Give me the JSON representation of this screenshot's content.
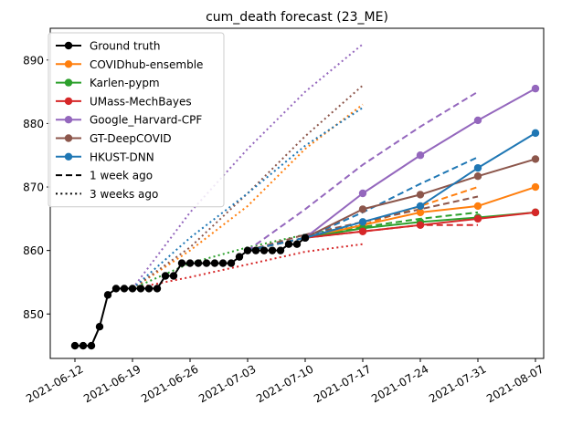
{
  "chart_data": {
    "type": "line",
    "title": "cum_death forecast (23_ME)",
    "xlabel": "",
    "ylabel": "",
    "x_range": [
      "2021-06-09",
      "2021-08-08"
    ],
    "y_range": [
      843,
      895
    ],
    "x_ticks": [
      "2021-06-12",
      "2021-06-19",
      "2021-06-26",
      "2021-07-03",
      "2021-07-10",
      "2021-07-17",
      "2021-07-24",
      "2021-07-31",
      "2021-08-07"
    ],
    "y_ticks": [
      850,
      860,
      870,
      880,
      890
    ],
    "grid": false,
    "legend_position": "top-left",
    "legend": [
      {
        "label": "Ground truth",
        "color": "#000000",
        "style": "solid-marker"
      },
      {
        "label": "COVIDhub-ensemble",
        "color": "#ff7f0e",
        "style": "solid-marker"
      },
      {
        "label": "Karlen-pypm",
        "color": "#2ca02c",
        "style": "solid-marker"
      },
      {
        "label": "UMass-MechBayes",
        "color": "#d62728",
        "style": "solid-marker"
      },
      {
        "label": "Google_Harvard-CPF",
        "color": "#9467bd",
        "style": "solid-marker"
      },
      {
        "label": "GT-DeepCOVID",
        "color": "#8c564b",
        "style": "solid-marker"
      },
      {
        "label": "HKUST-DNN",
        "color": "#1f77b4",
        "style": "solid-marker"
      },
      {
        "label": "1 week ago",
        "color": "#000000",
        "style": "dashed"
      },
      {
        "label": "3 weeks ago",
        "color": "#000000",
        "style": "dotted"
      }
    ],
    "ground_truth": {
      "name": "Ground truth",
      "color": "#000000",
      "points": [
        [
          "2021-06-12",
          845
        ],
        [
          "2021-06-13",
          845
        ],
        [
          "2021-06-14",
          845
        ],
        [
          "2021-06-15",
          848
        ],
        [
          "2021-06-16",
          853
        ],
        [
          "2021-06-17",
          854
        ],
        [
          "2021-06-18",
          854
        ],
        [
          "2021-06-19",
          854
        ],
        [
          "2021-06-20",
          854
        ],
        [
          "2021-06-21",
          854
        ],
        [
          "2021-06-22",
          854
        ],
        [
          "2021-06-23",
          856
        ],
        [
          "2021-06-24",
          856
        ],
        [
          "2021-06-25",
          858
        ],
        [
          "2021-06-26",
          858
        ],
        [
          "2021-06-27",
          858
        ],
        [
          "2021-06-28",
          858
        ],
        [
          "2021-06-29",
          858
        ],
        [
          "2021-06-30",
          858
        ],
        [
          "2021-07-01",
          858
        ],
        [
          "2021-07-02",
          859
        ],
        [
          "2021-07-03",
          860
        ],
        [
          "2021-07-04",
          860
        ],
        [
          "2021-07-05",
          860
        ],
        [
          "2021-07-06",
          860
        ],
        [
          "2021-07-07",
          860
        ],
        [
          "2021-07-08",
          861
        ],
        [
          "2021-07-09",
          861
        ],
        [
          "2021-07-10",
          862
        ]
      ]
    },
    "series": [
      {
        "name": "COVIDhub-ensemble",
        "color": "#ff7f0e",
        "horizon": "current",
        "points": [
          [
            "2021-07-10",
            862
          ],
          [
            "2021-07-17",
            864
          ],
          [
            "2021-07-24",
            866
          ],
          [
            "2021-07-31",
            867
          ],
          [
            "2021-08-07",
            870
          ]
        ]
      },
      {
        "name": "COVIDhub-ensemble",
        "color": "#ff7f0e",
        "horizon": "1 week ago",
        "points": [
          [
            "2021-07-03",
            860
          ],
          [
            "2021-07-10",
            862
          ],
          [
            "2021-07-17",
            864
          ],
          [
            "2021-07-24",
            867
          ],
          [
            "2021-07-31",
            870
          ]
        ]
      },
      {
        "name": "COVIDhub-ensemble",
        "color": "#ff7f0e",
        "horizon": "3 weeks ago",
        "points": [
          [
            "2021-06-19",
            854
          ],
          [
            "2021-06-26",
            860
          ],
          [
            "2021-07-03",
            867
          ],
          [
            "2021-07-10",
            876
          ],
          [
            "2021-07-17",
            883
          ]
        ]
      },
      {
        "name": "Karlen-pypm",
        "color": "#2ca02c",
        "horizon": "current",
        "points": [
          [
            "2021-07-10",
            862
          ],
          [
            "2021-07-17",
            863.5
          ],
          [
            "2021-07-24",
            864.5
          ],
          [
            "2021-07-31",
            865.2
          ],
          [
            "2021-08-07",
            866
          ]
        ]
      },
      {
        "name": "Karlen-pypm",
        "color": "#2ca02c",
        "horizon": "1 week ago",
        "points": [
          [
            "2021-07-03",
            860
          ],
          [
            "2021-07-10",
            862
          ],
          [
            "2021-07-17",
            863.7
          ],
          [
            "2021-07-24",
            865
          ],
          [
            "2021-07-31",
            866
          ]
        ]
      },
      {
        "name": "Karlen-pypm",
        "color": "#2ca02c",
        "horizon": "3 weeks ago",
        "points": [
          [
            "2021-06-19",
            854
          ],
          [
            "2021-06-26",
            858
          ],
          [
            "2021-07-03",
            860.5
          ],
          [
            "2021-07-10",
            862.5
          ],
          [
            "2021-07-17",
            864
          ]
        ]
      },
      {
        "name": "UMass-MechBayes",
        "color": "#d62728",
        "horizon": "current",
        "points": [
          [
            "2021-07-10",
            862
          ],
          [
            "2021-07-17",
            863
          ],
          [
            "2021-07-24",
            864
          ],
          [
            "2021-07-31",
            865
          ],
          [
            "2021-08-07",
            866
          ]
        ]
      },
      {
        "name": "UMass-MechBayes",
        "color": "#d62728",
        "horizon": "1 week ago",
        "points": [
          [
            "2021-07-03",
            860
          ],
          [
            "2021-07-10",
            862
          ],
          [
            "2021-07-17",
            863
          ],
          [
            "2021-07-24",
            864
          ],
          [
            "2021-07-31",
            864
          ]
        ]
      },
      {
        "name": "UMass-MechBayes",
        "color": "#d62728",
        "horizon": "3 weeks ago",
        "points": [
          [
            "2021-06-19",
            854
          ],
          [
            "2021-06-26",
            855.8
          ],
          [
            "2021-07-03",
            857.8
          ],
          [
            "2021-07-10",
            859.8
          ],
          [
            "2021-07-17",
            861
          ]
        ]
      },
      {
        "name": "Google_Harvard-CPF",
        "color": "#9467bd",
        "horizon": "current",
        "points": [
          [
            "2021-07-10",
            862
          ],
          [
            "2021-07-17",
            869
          ],
          [
            "2021-07-24",
            875
          ],
          [
            "2021-07-31",
            880.5
          ],
          [
            "2021-08-07",
            885.5
          ]
        ]
      },
      {
        "name": "Google_Harvard-CPF",
        "color": "#9467bd",
        "horizon": "1 week ago",
        "points": [
          [
            "2021-07-03",
            860
          ],
          [
            "2021-07-10",
            866.5
          ],
          [
            "2021-07-17",
            873.5
          ],
          [
            "2021-07-24",
            879.5
          ],
          [
            "2021-07-31",
            885
          ]
        ]
      },
      {
        "name": "Google_Harvard-CPF",
        "color": "#9467bd",
        "horizon": "3 weeks ago",
        "points": [
          [
            "2021-06-19",
            854
          ],
          [
            "2021-06-26",
            866
          ],
          [
            "2021-07-03",
            876
          ],
          [
            "2021-07-10",
            885
          ],
          [
            "2021-07-17",
            892.5
          ]
        ]
      },
      {
        "name": "GT-DeepCOVID",
        "color": "#8c564b",
        "horizon": "current",
        "points": [
          [
            "2021-07-10",
            862
          ],
          [
            "2021-07-17",
            866.5
          ],
          [
            "2021-07-24",
            868.8
          ],
          [
            "2021-07-31",
            871.7
          ],
          [
            "2021-08-07",
            874.4
          ]
        ]
      },
      {
        "name": "GT-DeepCOVID",
        "color": "#8c564b",
        "horizon": "1 week ago",
        "points": [
          [
            "2021-07-03",
            860
          ],
          [
            "2021-07-10",
            862.5
          ],
          [
            "2021-07-17",
            864.5
          ],
          [
            "2021-07-24",
            866.5
          ],
          [
            "2021-07-31",
            868.5
          ]
        ]
      },
      {
        "name": "GT-DeepCOVID",
        "color": "#8c564b",
        "horizon": "3 weeks ago",
        "points": [
          [
            "2021-06-19",
            854
          ],
          [
            "2021-06-26",
            860.5
          ],
          [
            "2021-07-03",
            869
          ],
          [
            "2021-07-10",
            878
          ],
          [
            "2021-07-17",
            886
          ]
        ]
      },
      {
        "name": "HKUST-DNN",
        "color": "#1f77b4",
        "horizon": "current",
        "points": [
          [
            "2021-07-10",
            862
          ],
          [
            "2021-07-17",
            864.5
          ],
          [
            "2021-07-24",
            867
          ],
          [
            "2021-07-31",
            873
          ],
          [
            "2021-08-07",
            878.5
          ]
        ]
      },
      {
        "name": "HKUST-DNN",
        "color": "#1f77b4",
        "horizon": "1 week ago",
        "points": [
          [
            "2021-07-03",
            860
          ],
          [
            "2021-07-10",
            862
          ],
          [
            "2021-07-17",
            866
          ],
          [
            "2021-07-24",
            870.5
          ],
          [
            "2021-07-31",
            874.7
          ]
        ]
      },
      {
        "name": "HKUST-DNN",
        "color": "#1f77b4",
        "horizon": "3 weeks ago",
        "points": [
          [
            "2021-06-19",
            854
          ],
          [
            "2021-06-26",
            862
          ],
          [
            "2021-07-03",
            869
          ],
          [
            "2021-07-10",
            876.5
          ],
          [
            "2021-07-17",
            882.5
          ]
        ]
      }
    ]
  }
}
